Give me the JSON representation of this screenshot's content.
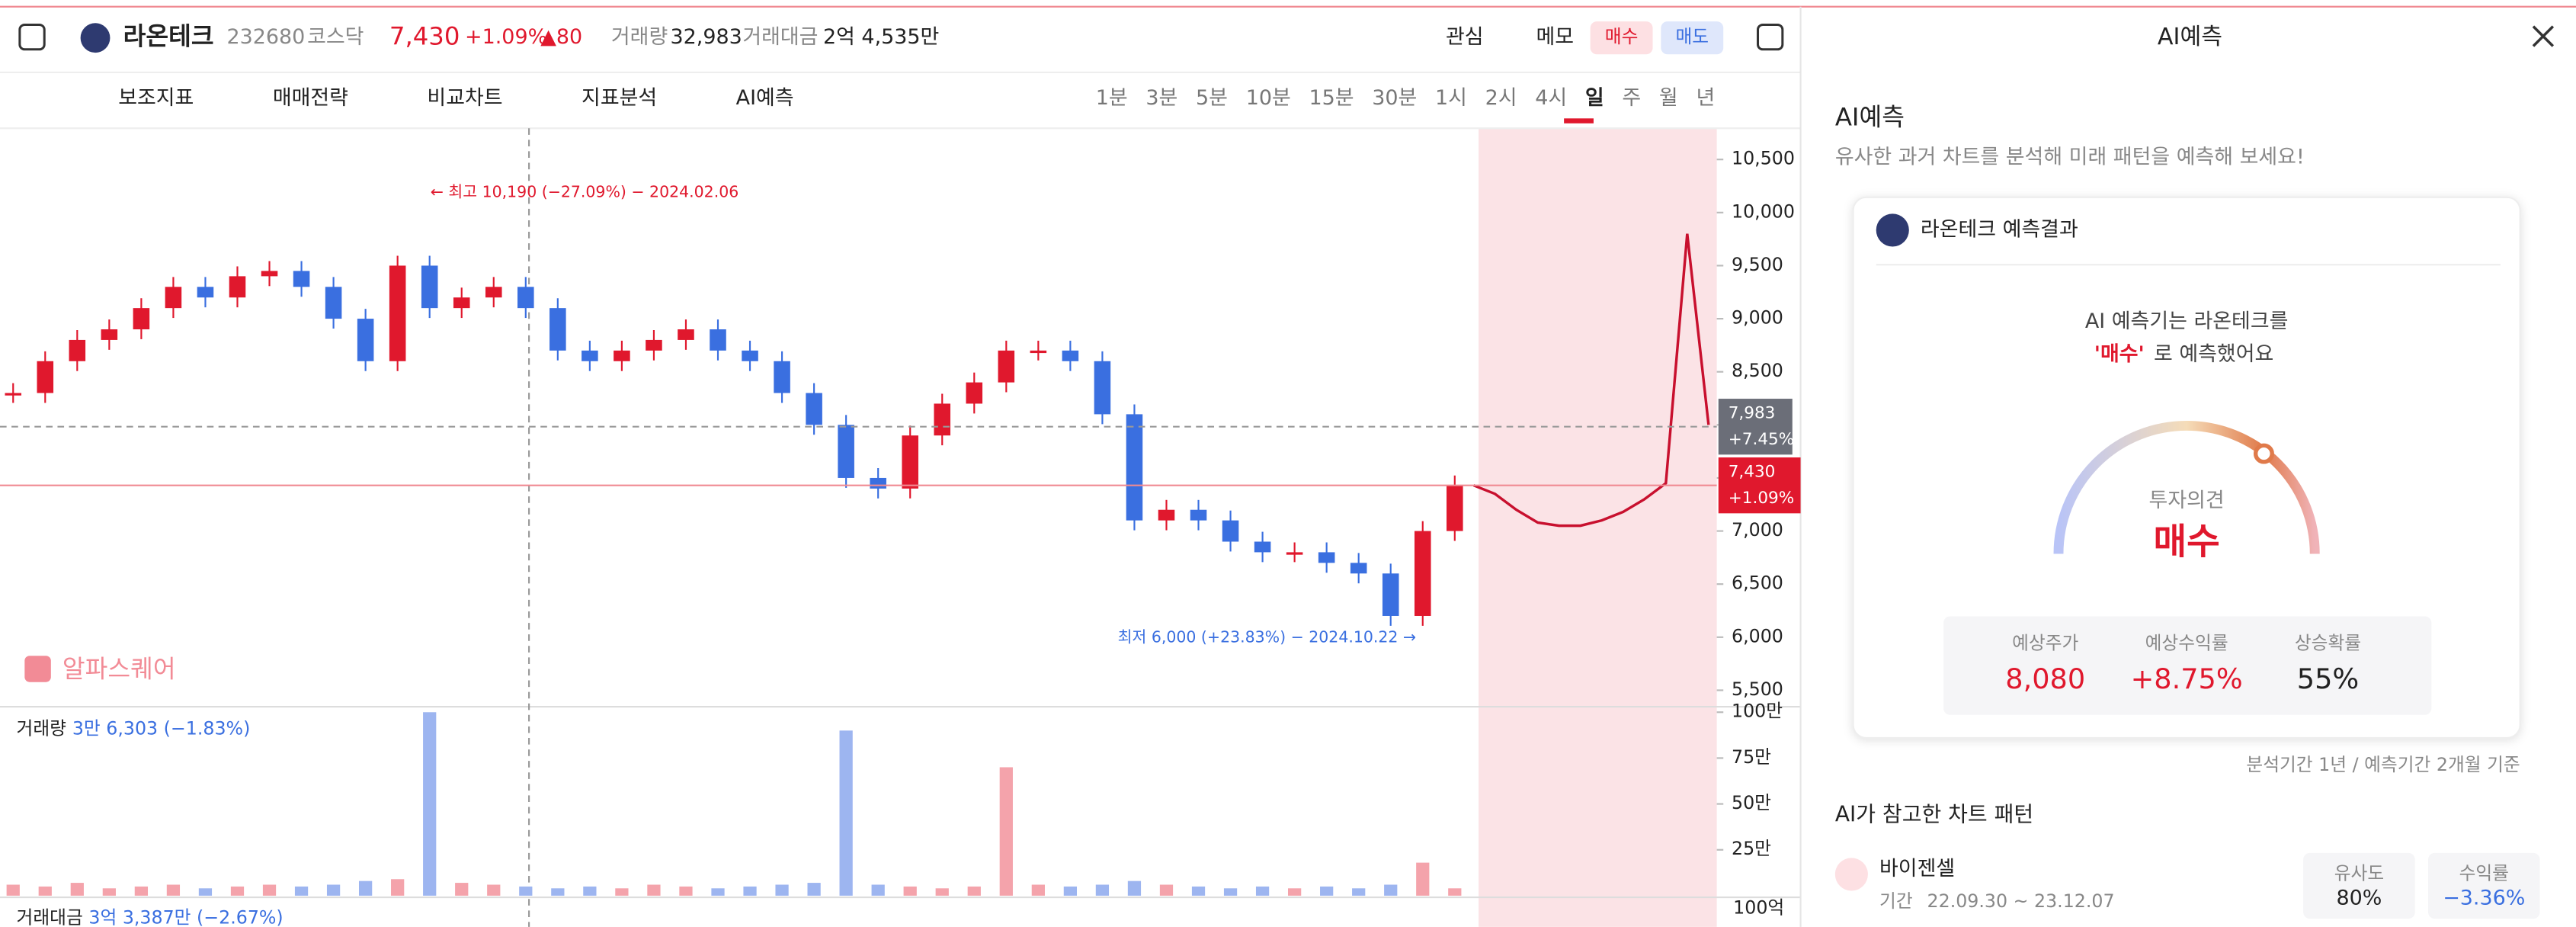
{
  "header": {
    "name": "라온테크",
    "code": "232680",
    "market": "코스닥",
    "price": "7,430",
    "change": "+1.09%",
    "delta": "▲80",
    "volume_label": "거래량",
    "volume": "32,983",
    "amount_label": "거래대금",
    "amount": "2억 4,535만",
    "watch": "관심",
    "memo": "메모",
    "buy": "매수",
    "sell": "매도"
  },
  "toolbar": {
    "tools": [
      "보조지표",
      "매매전략",
      "비교차트",
      "지표분석",
      "AI예측"
    ],
    "periods": [
      "1분",
      "3분",
      "5분",
      "10분",
      "15분",
      "30분",
      "1시",
      "2시",
      "4시",
      "일",
      "주",
      "월",
      "년"
    ]
  },
  "chart": {
    "type": "candlestick",
    "ylim": [
      5345,
      10794
    ],
    "yticks": [
      {
        "value": 10500,
        "label": "10,500"
      },
      {
        "value": 10000,
        "label": "10,000"
      },
      {
        "value": 9500,
        "label": "9,500"
      },
      {
        "value": 9000,
        "label": "9,000"
      },
      {
        "value": 8500,
        "label": "8,500"
      },
      {
        "value": 8000,
        "label": "8,000"
      },
      {
        "value": 7500,
        "label": "7,500"
      },
      {
        "value": 7000,
        "label": "7,000"
      },
      {
        "value": 6500,
        "label": "6,500"
      },
      {
        "value": 6000,
        "label": "6,000"
      },
      {
        "value": 5500,
        "label": "5,500"
      }
    ],
    "close": [
      8300,
      8600,
      8800,
      8900,
      9100,
      9300,
      9200,
      9400,
      9450,
      9300,
      9000,
      8600,
      9500,
      9100,
      9200,
      9300,
      9100,
      8700,
      8600,
      8700,
      8800,
      8900,
      8700,
      8600,
      8300,
      8000,
      7500,
      7400,
      7900,
      8200,
      8400,
      8700,
      8700,
      8600,
      8100,
      7100,
      7200,
      7100,
      6900,
      6800,
      6800,
      6700,
      6600,
      6200,
      7000,
      7430
    ],
    "forecast": [
      7430,
      7350,
      7200,
      7080,
      7050,
      7050,
      7100,
      7180,
      7300,
      7450,
      9800,
      8000
    ],
    "predicted": {
      "value": 7983,
      "label": "7,983",
      "change": "+7.45%"
    },
    "current": {
      "value": 7430,
      "label": "7,430",
      "change": "+1.09%"
    },
    "high_note": "← 최고 10,190 (−27.09%) − 2024.02.06",
    "low_note": "최저 6,000 (+23.83%) − 2024.10.22 →",
    "watermark": "알파스퀘어",
    "volume": {
      "label": "거래량",
      "summary": "3만 6,303 (−1.83%)",
      "ylim": [
        0,
        1030000
      ],
      "yticks": [
        {
          "value": 1000000,
          "label": "100만"
        },
        {
          "value": 750000,
          "label": "75만"
        },
        {
          "value": 500000,
          "label": "50만"
        },
        {
          "value": 250000,
          "label": "25만"
        }
      ],
      "values": [
        60000,
        50000,
        70000,
        40000,
        50000,
        60000,
        40000,
        50000,
        60000,
        50000,
        60000,
        80000,
        90000,
        1000000,
        70000,
        60000,
        50000,
        40000,
        50000,
        40000,
        60000,
        50000,
        40000,
        50000,
        60000,
        70000,
        900000,
        60000,
        50000,
        40000,
        50000,
        700000,
        60000,
        50000,
        60000,
        80000,
        60000,
        50000,
        40000,
        50000,
        40000,
        50000,
        40000,
        60000,
        180000,
        40000
      ]
    },
    "amount_label": "거래대금",
    "amount_summary": "3억 3,387만 (−2.67%)",
    "amount_tick": "100억"
  },
  "panel": {
    "title": "AI예측",
    "heading": "AI예측",
    "subtitle": "유사한 과거 차트를 분석해 미래 패턴을 예측해 보세요!",
    "card_title": "라온테크 예측결과",
    "line1": "AI 예측기는 라온테크를",
    "line2_em": "'매수'",
    "line2_rest": "로 예측했어요",
    "opinion_label": "투자의견",
    "opinion": "매수",
    "stats": [
      {
        "label": "예상주가",
        "value": "8,080"
      },
      {
        "label": "예상수익률",
        "value": "+8.75%"
      },
      {
        "label": "상승확률",
        "value": "55%"
      }
    ],
    "basis": "분석기간 1년 / 예측기간 2개월 기준",
    "patterns_title": "AI가 참고한 차트 패턴",
    "pattern": {
      "name": "바이젠셀",
      "period_label": "기간",
      "period": "22.09.30 ~ 23.12.07",
      "similarity_label": "유사도",
      "similarity": "80%",
      "return_label": "수익률",
      "return": "−3.36%"
    }
  }
}
